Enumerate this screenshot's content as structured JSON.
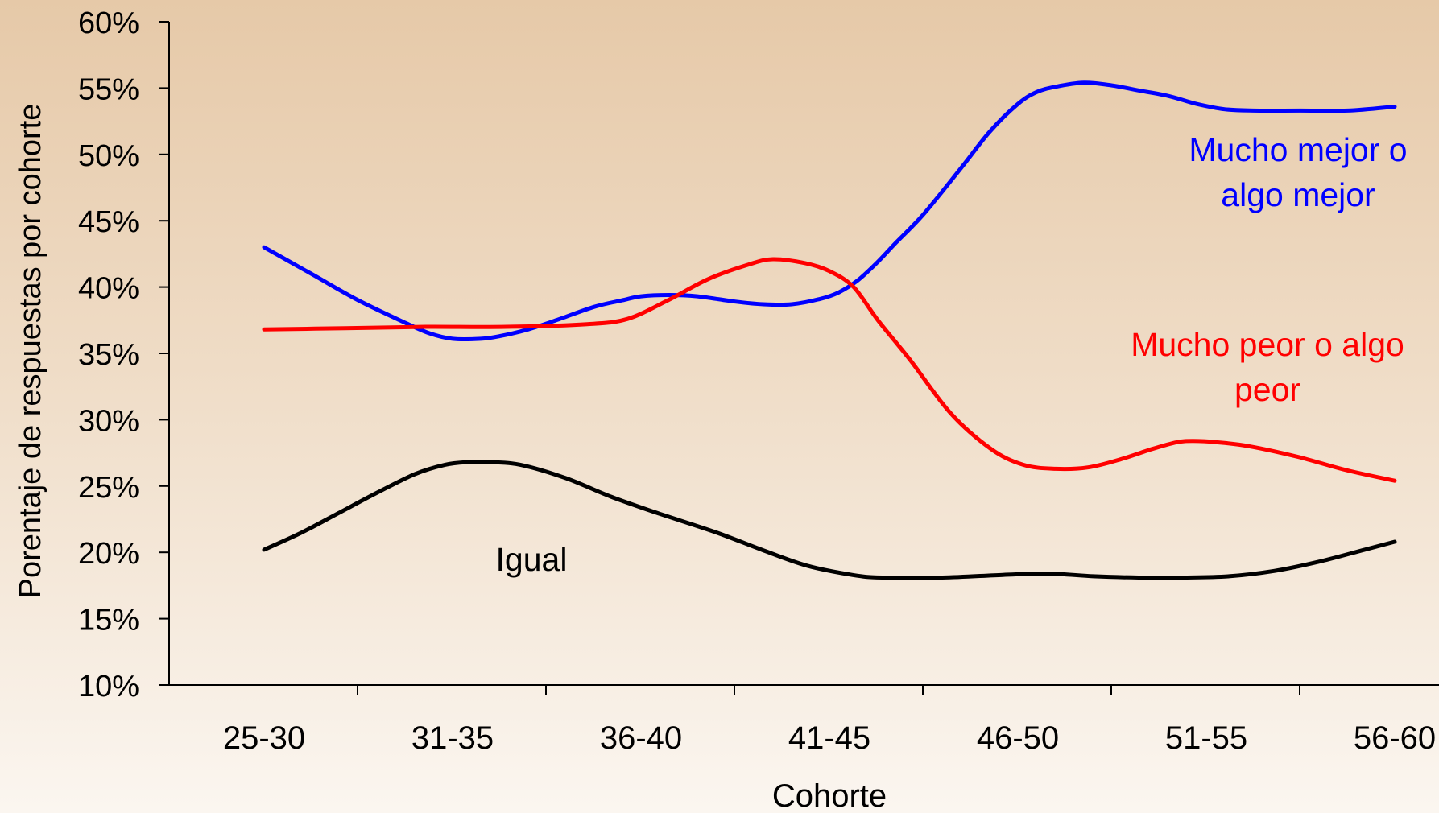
{
  "chart_data": {
    "type": "line",
    "title": "",
    "xlabel": "Cohorte",
    "ylabel": "Porentaje de respuestas por cohorte",
    "categories": [
      "25-30",
      "31-35",
      "36-40",
      "41-45",
      "46-50",
      "51-55",
      "56-60"
    ],
    "y_ticks": [
      "10%",
      "15%",
      "20%",
      "25%",
      "30%",
      "35%",
      "40%",
      "45%",
      "50%",
      "55%",
      "60%"
    ],
    "ylim": [
      10,
      60
    ],
    "grid": false,
    "series": [
      {
        "name": "Mucho mejor o algo mejor",
        "label_lines": [
          "Mucho mejor o",
          "algo mejor"
        ],
        "color": "#0000ff",
        "values": [
          [
            0,
            43.0
          ],
          [
            0.25,
            41.0
          ],
          [
            0.5,
            39.0
          ],
          [
            0.75,
            37.3
          ],
          [
            0.88,
            36.5
          ],
          [
            1.0,
            36.1
          ],
          [
            1.15,
            36.1
          ],
          [
            1.25,
            36.3
          ],
          [
            1.4,
            36.8
          ],
          [
            1.55,
            37.5
          ],
          [
            1.75,
            38.5
          ],
          [
            1.9,
            39.0
          ],
          [
            2.0,
            39.3
          ],
          [
            2.15,
            39.4
          ],
          [
            2.3,
            39.3
          ],
          [
            2.5,
            38.9
          ],
          [
            2.65,
            38.7
          ],
          [
            2.8,
            38.7
          ],
          [
            2.95,
            39.1
          ],
          [
            3.05,
            39.6
          ],
          [
            3.15,
            40.5
          ],
          [
            3.25,
            41.8
          ],
          [
            3.35,
            43.3
          ],
          [
            3.5,
            45.5
          ],
          [
            3.7,
            49.0
          ],
          [
            3.85,
            51.7
          ],
          [
            4.0,
            53.8
          ],
          [
            4.1,
            54.7
          ],
          [
            4.2,
            55.1
          ],
          [
            4.35,
            55.4
          ],
          [
            4.5,
            55.2
          ],
          [
            4.65,
            54.8
          ],
          [
            4.8,
            54.4
          ],
          [
            4.95,
            53.8
          ],
          [
            5.1,
            53.4
          ],
          [
            5.25,
            53.3
          ],
          [
            5.5,
            53.3
          ],
          [
            5.75,
            53.3
          ],
          [
            6.0,
            53.6
          ]
        ]
      },
      {
        "name": "Mucho peor o algo peor",
        "label_lines": [
          "Mucho peor o algo",
          "peor"
        ],
        "color": "#ff0000",
        "values": [
          [
            0,
            36.8
          ],
          [
            0.5,
            36.9
          ],
          [
            1.0,
            37.0
          ],
          [
            1.5,
            37.0
          ],
          [
            2.0,
            37.2
          ],
          [
            2.25,
            37.6
          ],
          [
            2.5,
            39.0
          ],
          [
            2.75,
            40.6
          ],
          [
            3.0,
            41.7
          ],
          [
            3.15,
            42.1
          ],
          [
            3.35,
            41.8
          ],
          [
            3.5,
            41.2
          ],
          [
            3.65,
            40.0
          ],
          [
            3.8,
            37.5
          ],
          [
            4.0,
            34.5
          ],
          [
            4.25,
            30.5
          ],
          [
            4.5,
            27.8
          ],
          [
            4.7,
            26.6
          ],
          [
            4.9,
            26.3
          ],
          [
            5.1,
            26.4
          ],
          [
            5.3,
            27.0
          ],
          [
            5.5,
            27.8
          ],
          [
            5.65,
            28.3
          ],
          [
            5.75,
            28.4
          ],
          [
            5.9,
            28.3
          ],
          [
            6.1,
            28.0
          ],
          [
            6.4,
            27.2
          ],
          [
            6.7,
            26.2
          ],
          [
            7.0,
            25.4
          ]
        ]
      },
      {
        "name": "Igual",
        "label_lines": [
          "Igual"
        ],
        "color": "#000000",
        "values": [
          [
            0,
            20.2
          ],
          [
            0.25,
            21.5
          ],
          [
            0.5,
            23.0
          ],
          [
            0.75,
            24.5
          ],
          [
            1.0,
            25.9
          ],
          [
            1.2,
            26.6
          ],
          [
            1.35,
            26.8
          ],
          [
            1.5,
            26.8
          ],
          [
            1.7,
            26.6
          ],
          [
            2.0,
            25.6
          ],
          [
            2.3,
            24.2
          ],
          [
            2.6,
            23.0
          ],
          [
            3.0,
            21.5
          ],
          [
            3.3,
            20.2
          ],
          [
            3.6,
            19.0
          ],
          [
            3.9,
            18.3
          ],
          [
            4.1,
            18.1
          ],
          [
            4.5,
            18.1
          ],
          [
            4.9,
            18.3
          ],
          [
            5.2,
            18.4
          ],
          [
            5.5,
            18.2
          ],
          [
            5.8,
            18.1
          ],
          [
            6.1,
            18.1
          ],
          [
            6.4,
            18.2
          ],
          [
            6.7,
            18.6
          ],
          [
            7.0,
            19.3
          ],
          [
            7.3,
            20.2
          ],
          [
            7.5,
            20.8
          ]
        ]
      }
    ]
  }
}
